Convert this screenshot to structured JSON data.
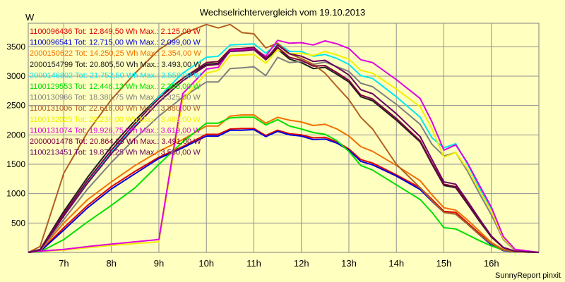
{
  "chart_data": {
    "type": "line",
    "title": "Wechselrichtervergleich vom 19.10.2013",
    "ylabel": "W",
    "xlabel": "",
    "ylim": [
      0,
      3900
    ],
    "xlim": [
      6.25,
      17.0
    ],
    "y_ticks": [
      500,
      1000,
      1500,
      2000,
      2500,
      3000,
      3500
    ],
    "x_ticks": [
      7,
      8,
      9,
      10,
      11,
      12,
      13,
      14,
      15,
      16
    ],
    "x_tick_labels": [
      "7h",
      "8h",
      "9h",
      "10h",
      "11h",
      "12h",
      "13h",
      "14h",
      "15h",
      "16h"
    ],
    "grid": true,
    "legend_position": "top-left",
    "footer": "SunnyReport pinxit",
    "series": [
      {
        "name": "1100096436 Tot: 12.849,50 Wh Max.: 2.125,00 W",
        "color": "#e00000",
        "x": [
          6.25,
          6.5,
          7.0,
          7.5,
          8.0,
          8.5,
          9.0,
          9.5,
          10.0,
          10.25,
          10.5,
          10.75,
          11.0,
          11.25,
          11.5,
          11.75,
          12.0,
          12.25,
          12.5,
          12.75,
          13.0,
          13.25,
          13.5,
          14.0,
          14.5,
          14.75,
          15.0,
          15.25,
          15.5,
          15.75,
          16.0,
          16.25,
          16.5,
          17.0
        ],
        "values": [
          0,
          20,
          420,
          800,
          1120,
          1380,
          1620,
          1800,
          2010,
          2010,
          2100,
          2110,
          2110,
          1990,
          2080,
          2020,
          2000,
          1950,
          1960,
          1880,
          1760,
          1580,
          1520,
          1320,
          1100,
          900,
          700,
          680,
          500,
          320,
          150,
          40,
          10,
          0
        ]
      },
      {
        "name": "1100096541 Tot: 12.715,00 Wh Max.: 2.099,00 W",
        "color": "#0000e0",
        "x": [
          6.25,
          6.5,
          7.0,
          7.5,
          8.0,
          8.5,
          9.0,
          9.5,
          10.0,
          10.25,
          10.5,
          10.75,
          11.0,
          11.25,
          11.5,
          11.75,
          12.0,
          12.25,
          12.5,
          12.75,
          13.0,
          13.25,
          13.5,
          14.0,
          14.5,
          14.75,
          15.0,
          15.25,
          15.5,
          15.75,
          16.0,
          16.25,
          16.5,
          17.0
        ],
        "values": [
          0,
          15,
          380,
          760,
          1080,
          1340,
          1600,
          1780,
          1980,
          1980,
          2080,
          2080,
          2090,
          1970,
          2060,
          2000,
          1980,
          1920,
          1930,
          1860,
          1740,
          1550,
          1490,
          1300,
          1070,
          870,
          680,
          650,
          480,
          300,
          130,
          30,
          10,
          0
        ]
      },
      {
        "name": "2000150622 Tot: 14.250,25 Wh Max.: 2.354,00 W",
        "color": "#f07000",
        "x": [
          6.25,
          6.5,
          7.0,
          7.5,
          8.0,
          8.5,
          9.0,
          9.5,
          10.0,
          10.25,
          10.5,
          10.75,
          11.0,
          11.25,
          11.5,
          11.75,
          12.0,
          12.25,
          12.5,
          12.75,
          13.0,
          13.25,
          13.5,
          14.0,
          14.5,
          14.75,
          15.0,
          15.25,
          15.5,
          15.75,
          16.0,
          16.25,
          16.5,
          17.0
        ],
        "values": [
          0,
          30,
          500,
          900,
          1200,
          1480,
          1720,
          1920,
          2150,
          2150,
          2320,
          2340,
          2340,
          2200,
          2300,
          2250,
          2220,
          2160,
          2180,
          2100,
          1980,
          1800,
          1720,
          1480,
          1220,
          980,
          760,
          720,
          550,
          360,
          170,
          50,
          15,
          0
        ]
      },
      {
        "name": "2000154799 Tot: 20.805,50 Wh Max.: 3.493,00 W",
        "color": "#202020",
        "x": [
          6.25,
          6.5,
          7.0,
          7.5,
          8.0,
          8.5,
          9.0,
          9.5,
          10.0,
          10.25,
          10.5,
          10.75,
          11.0,
          11.25,
          11.5,
          11.75,
          12.0,
          12.25,
          12.5,
          12.75,
          13.0,
          13.25,
          13.5,
          14.0,
          14.5,
          14.75,
          15.0,
          15.25,
          15.5,
          15.75,
          16.0,
          16.25,
          16.5,
          17.0
        ],
        "values": [
          0,
          50,
          700,
          1280,
          1800,
          2250,
          2650,
          2960,
          3200,
          3220,
          3430,
          3440,
          3480,
          3280,
          3460,
          3290,
          3230,
          3130,
          3150,
          3030,
          2900,
          2650,
          2580,
          2250,
          1880,
          1500,
          1140,
          1100,
          820,
          530,
          260,
          80,
          20,
          0
        ]
      },
      {
        "name": "2000146802 Tot: 21.752,50 Wh Max.: 3.558,00 W",
        "color": "#00e8f0",
        "x": [
          6.25,
          6.5,
          7.0,
          7.5,
          8.0,
          8.5,
          9.0,
          9.5,
          10.0,
          10.25,
          10.5,
          10.75,
          11.0,
          11.25,
          11.5,
          11.75,
          12.0,
          12.25,
          12.5,
          12.75,
          13.0,
          13.25,
          13.5,
          14.0,
          14.5,
          14.75,
          15.0,
          15.25,
          15.5,
          15.75,
          16.0,
          16.25,
          16.5,
          17.0
        ],
        "values": [
          0,
          40,
          640,
          1200,
          1700,
          2180,
          2650,
          3050,
          3320,
          3340,
          3530,
          3540,
          3550,
          3390,
          3560,
          3420,
          3420,
          3340,
          3370,
          3300,
          3200,
          3010,
          2960,
          2650,
          2300,
          1950,
          1780,
          1850,
          1500,
          1100,
          720,
          250,
          40,
          0
        ]
      },
      {
        "name": "1100129553 Tot: 12.446,13 Wh Max.: 2.305,00 W",
        "color": "#00e000",
        "x": [
          6.25,
          6.5,
          7.0,
          7.5,
          8.0,
          8.5,
          9.0,
          9.5,
          10.0,
          10.25,
          10.5,
          10.75,
          11.0,
          11.25,
          11.5,
          11.75,
          12.0,
          12.25,
          12.5,
          12.75,
          13.0,
          13.25,
          13.5,
          14.0,
          14.5,
          14.75,
          15.0,
          15.25,
          15.5,
          15.75,
          16.0,
          16.25,
          16.5,
          17.0
        ],
        "values": [
          0,
          10,
          220,
          520,
          800,
          1100,
          1500,
          1880,
          2200,
          2200,
          2290,
          2300,
          2300,
          2170,
          2260,
          2150,
          2100,
          2040,
          2010,
          1900,
          1720,
          1480,
          1400,
          1150,
          900,
          680,
          420,
          400,
          300,
          200,
          110,
          40,
          10,
          0
        ]
      },
      {
        "name": "1100130966 Tot: 18.380,75 Wh Max.: 3.325,00 W",
        "color": "#808080",
        "x": [
          6.25,
          6.5,
          7.0,
          7.5,
          8.0,
          8.5,
          9.0,
          9.5,
          10.0,
          10.25,
          10.5,
          10.75,
          11.0,
          11.25,
          11.5,
          11.75,
          12.0,
          12.25,
          12.5,
          12.75,
          13.0,
          13.25,
          13.5,
          14.0,
          14.5,
          14.75,
          15.0,
          15.25,
          15.5,
          15.75,
          16.0,
          16.25,
          16.5,
          17.0
        ],
        "values": [
          0,
          40,
          560,
          1080,
          1530,
          1940,
          2320,
          2640,
          2900,
          2900,
          3130,
          3140,
          3160,
          3010,
          3320,
          3230,
          3250,
          3200,
          3240,
          3160,
          3080,
          2880,
          2820,
          2520,
          2180,
          1840,
          1640,
          1700,
          1380,
          1000,
          640,
          220,
          30,
          0
        ]
      },
      {
        "name": "1100131006 Tot: 22.618,00 Wh Max.: 3.880,00 W",
        "color": "#b06020",
        "x": [
          6.25,
          6.5,
          7.0,
          7.5,
          8.0,
          8.5,
          9.0,
          9.5,
          10.0,
          10.25,
          10.5,
          10.75,
          11.0,
          11.25,
          11.5,
          11.75,
          12.0,
          12.25,
          12.5,
          12.75,
          13.0,
          13.25,
          13.5,
          14.0,
          14.5,
          14.75,
          15.0,
          15.25,
          15.5,
          15.75,
          16.0,
          16.25,
          16.5,
          17.0
        ],
        "values": [
          0,
          100,
          1350,
          2050,
          2600,
          3050,
          3450,
          3720,
          3880,
          3820,
          3880,
          3740,
          3720,
          3480,
          3560,
          3380,
          3300,
          3200,
          3050,
          2820,
          2600,
          2300,
          2100,
          1500,
          1100,
          880,
          680,
          650,
          480,
          300,
          150,
          40,
          10,
          0
        ]
      },
      {
        "name": "1100132025 Tot: 20.239,00 Wh Max.: 3.489,00 W",
        "color": "#f0f000",
        "x": [
          6.25,
          6.5,
          7.0,
          7.5,
          8.0,
          8.5,
          9.0,
          9.5,
          10.0,
          10.25,
          10.5,
          10.75,
          11.0,
          11.25,
          11.5,
          11.75,
          12.0,
          12.25,
          12.5,
          12.75,
          13.0,
          13.25,
          13.5,
          14.0,
          14.5,
          14.75,
          15.0,
          15.25,
          15.5,
          15.75,
          16.0,
          16.25,
          16.5,
          17.0
        ],
        "values": [
          0,
          20,
          40,
          80,
          120,
          150,
          180,
          2600,
          3050,
          3100,
          3350,
          3360,
          3370,
          3220,
          3450,
          3380,
          3390,
          3350,
          3420,
          3360,
          3290,
          3100,
          3050,
          2780,
          2480,
          2100,
          1620,
          1700,
          1420,
          1050,
          700,
          240,
          40,
          0
        ]
      },
      {
        "name": "1100131074 Tot: 19.926,75 Wh Max.: 3.619,00 W",
        "color": "#e000e0",
        "x": [
          6.25,
          6.5,
          7.0,
          7.5,
          8.0,
          8.5,
          9.0,
          9.5,
          10.0,
          10.25,
          10.5,
          10.75,
          11.0,
          11.25,
          11.5,
          11.75,
          12.0,
          12.25,
          12.5,
          12.75,
          13.0,
          13.25,
          13.5,
          14.0,
          14.5,
          14.75,
          15.0,
          15.25,
          15.5,
          15.75,
          16.0,
          16.25,
          16.5,
          17.0
        ],
        "values": [
          0,
          20,
          50,
          100,
          140,
          180,
          220,
          2700,
          3120,
          3150,
          3440,
          3450,
          3470,
          3340,
          3610,
          3560,
          3570,
          3530,
          3600,
          3550,
          3470,
          3280,
          3230,
          2940,
          2620,
          2220,
          1740,
          1830,
          1520,
          1140,
          770,
          270,
          50,
          0
        ]
      },
      {
        "name": "2000001478 Tot: 20.864,25 Wh Max.: 3.491,00 W",
        "color": "#800040",
        "x": [
          6.25,
          6.5,
          7.0,
          7.5,
          8.0,
          8.5,
          9.0,
          9.5,
          10.0,
          10.25,
          10.5,
          10.75,
          11.0,
          11.25,
          11.5,
          11.75,
          12.0,
          12.25,
          12.5,
          12.75,
          13.0,
          13.25,
          13.5,
          14.0,
          14.5,
          14.75,
          15.0,
          15.25,
          15.5,
          15.75,
          16.0,
          16.25,
          16.5,
          17.0
        ],
        "values": [
          0,
          45,
          660,
          1230,
          1740,
          2200,
          2620,
          2960,
          3230,
          3250,
          3460,
          3470,
          3490,
          3310,
          3490,
          3320,
          3270,
          3170,
          3180,
          3060,
          2930,
          2680,
          2610,
          2280,
          1900,
          1520,
          1160,
          1120,
          840,
          550,
          270,
          80,
          20,
          0
        ]
      },
      {
        "name": "1100213451 Tot: 19.871,25 Wh Max.: 3.530,00 W",
        "color": "#6a0060",
        "x": [
          6.25,
          6.5,
          7.0,
          7.5,
          8.0,
          8.5,
          9.0,
          9.5,
          10.0,
          10.25,
          10.5,
          10.75,
          11.0,
          11.25,
          11.5,
          11.75,
          12.0,
          12.25,
          12.5,
          12.75,
          13.0,
          13.25,
          13.5,
          14.0,
          14.5,
          14.75,
          15.0,
          15.25,
          15.5,
          15.75,
          16.0,
          16.25,
          16.5,
          17.0
        ],
        "values": [
          0,
          40,
          620,
          1180,
          1680,
          2140,
          2560,
          2920,
          3180,
          3200,
          3420,
          3430,
          3450,
          3280,
          3530,
          3380,
          3340,
          3250,
          3270,
          3150,
          3020,
          2770,
          2700,
          2360,
          1970,
          1580,
          1200,
          1160,
          870,
          570,
          280,
          85,
          20,
          0
        ]
      }
    ]
  }
}
